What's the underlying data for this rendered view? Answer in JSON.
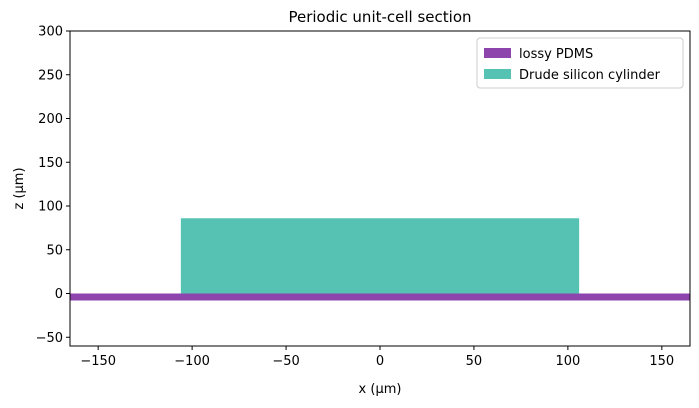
{
  "title": "Periodic unit-cell section",
  "xlabel": "x (µm)",
  "ylabel": "z (µm)",
  "xlim": [
    -165,
    165
  ],
  "ylim": [
    -60,
    300
  ],
  "xticks": [
    {
      "value": -150,
      "label": "−150"
    },
    {
      "value": -100,
      "label": "−100"
    },
    {
      "value": -50,
      "label": "−50"
    },
    {
      "value": 0,
      "label": "0"
    },
    {
      "value": 50,
      "label": "50"
    },
    {
      "value": 100,
      "label": "100"
    },
    {
      "value": 150,
      "label": "150"
    }
  ],
  "yticks": [
    {
      "value": -50,
      "label": "−50"
    },
    {
      "value": 0,
      "label": "0"
    },
    {
      "value": 50,
      "label": "50"
    },
    {
      "value": 100,
      "label": "100"
    },
    {
      "value": 150,
      "label": "150"
    },
    {
      "value": 200,
      "label": "200"
    },
    {
      "value": 250,
      "label": "250"
    },
    {
      "value": 300,
      "label": "300"
    }
  ],
  "regions": [
    {
      "name": "lossy PDMS",
      "color": "#8e44ad",
      "x": [
        -165,
        165
      ],
      "z": [
        -8,
        0
      ]
    },
    {
      "name": "Drude silicon cylinder",
      "color": "#56c2b4",
      "x": [
        -106,
        106
      ],
      "z": [
        0,
        86
      ]
    }
  ],
  "legend": {
    "placement": "upper right"
  }
}
